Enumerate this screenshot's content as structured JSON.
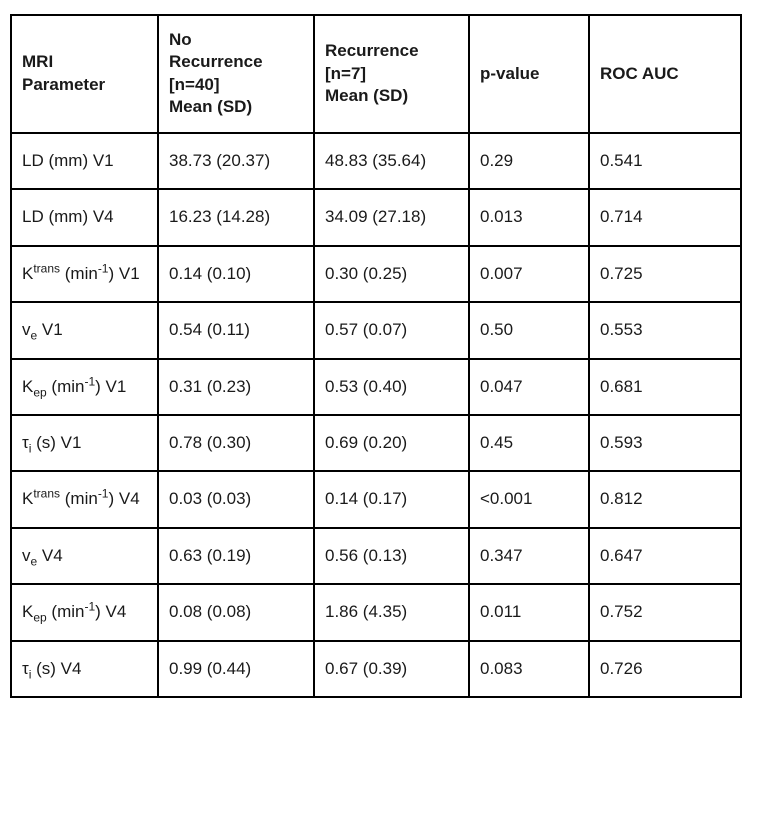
{
  "colors": {
    "border": "#000000",
    "text": "#1a1a1a",
    "background": "#ffffff"
  },
  "table": {
    "headers": [
      "MRI\nParameter",
      "No\nRecurrence\n[n=40]\nMean (SD)",
      "Recurrence\n[n=7]\nMean (SD)",
      "p-value",
      "ROC AUC"
    ],
    "rows": [
      {
        "parameter": [
          {
            "t": "LD (mm) V1"
          }
        ],
        "no_recurrence": "38.73 (20.37)",
        "recurrence": "48.83 (35.64)",
        "p_value": "0.29",
        "roc_auc": "0.541"
      },
      {
        "parameter": [
          {
            "t": "LD (mm) V4"
          }
        ],
        "no_recurrence": "16.23 (14.28)",
        "recurrence": "34.09 (27.18)",
        "p_value": "0.013",
        "roc_auc": "0.714"
      },
      {
        "parameter": [
          {
            "t": "K"
          },
          {
            "sup": "trans"
          },
          {
            "t": " (min"
          },
          {
            "sup": "-1"
          },
          {
            "t": ") V1"
          }
        ],
        "no_recurrence": "0.14 (0.10)",
        "recurrence": "0.30 (0.25)",
        "p_value": "0.007",
        "roc_auc": "0.725"
      },
      {
        "parameter": [
          {
            "t": "v"
          },
          {
            "sub": "e"
          },
          {
            "t": " V1"
          }
        ],
        "no_recurrence": "0.54 (0.11)",
        "recurrence": "0.57 (0.07)",
        "p_value": "0.50",
        "roc_auc": "0.553"
      },
      {
        "parameter": [
          {
            "t": "K"
          },
          {
            "sub": "ep"
          },
          {
            "t": " (min"
          },
          {
            "sup": "-1"
          },
          {
            "t": ") V1"
          }
        ],
        "no_recurrence": "0.31 (0.23)",
        "recurrence": "0.53 (0.40)",
        "p_value": "0.047",
        "roc_auc": "0.681"
      },
      {
        "parameter": [
          {
            "t": "τ"
          },
          {
            "sub": "i"
          },
          {
            "t": " (s) V1"
          }
        ],
        "no_recurrence": "0.78 (0.30)",
        "recurrence": "0.69 (0.20)",
        "p_value": "0.45",
        "roc_auc": "0.593"
      },
      {
        "parameter": [
          {
            "t": "K"
          },
          {
            "sup": "trans"
          },
          {
            "t": " (min"
          },
          {
            "sup": "-1"
          },
          {
            "t": ") V4"
          }
        ],
        "no_recurrence": "0.03 (0.03)",
        "recurrence": "0.14 (0.17)",
        "p_value": "<0.001",
        "roc_auc": "0.812"
      },
      {
        "parameter": [
          {
            "t": "v"
          },
          {
            "sub": "e"
          },
          {
            "t": " V4"
          }
        ],
        "no_recurrence": "0.63 (0.19)",
        "recurrence": "0.56 (0.13)",
        "p_value": "0.347",
        "roc_auc": "0.647"
      },
      {
        "parameter": [
          {
            "t": "K"
          },
          {
            "sub": "ep"
          },
          {
            "t": " (min"
          },
          {
            "sup": "-1"
          },
          {
            "t": ") V4"
          }
        ],
        "no_recurrence": "0.08 (0.08)",
        "recurrence": "1.86 (4.35)",
        "p_value": "0.011",
        "roc_auc": "0.752"
      },
      {
        "parameter": [
          {
            "t": "τ"
          },
          {
            "sub": "i"
          },
          {
            "t": " (s) V4"
          }
        ],
        "no_recurrence": "0.99 (0.44)",
        "recurrence": "0.67 (0.39)",
        "p_value": "0.083",
        "roc_auc": "0.726"
      }
    ]
  }
}
